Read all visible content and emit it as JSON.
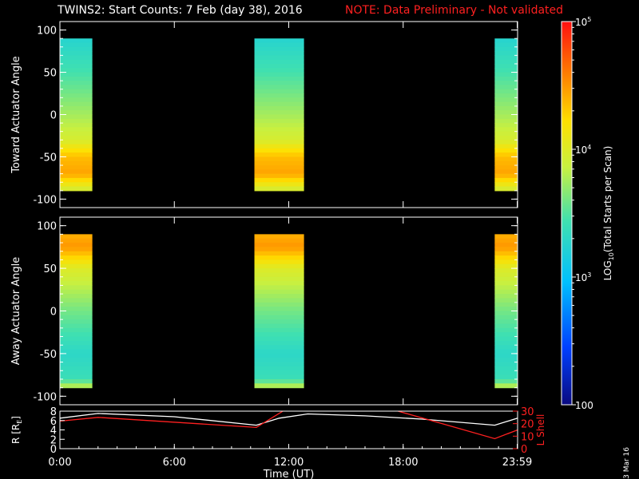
{
  "title": "TWINS2: Start Counts:  7 Feb (day  38), 2016",
  "note": "NOTE: Data Preliminary - Not validated",
  "date_stamp": "3 Mar 16",
  "colors": {
    "background": "#000000",
    "axes": "#ffffff",
    "note": "#ff2020",
    "r_line": "#ffffff",
    "lshell_line": "#ff2020"
  },
  "chart_data": [
    {
      "type": "heatmap",
      "ylabel": "Toward Actuator Angle",
      "ylim": [
        -110,
        110
      ],
      "yticks": [
        "100",
        "50",
        "0",
        "-50",
        "-100"
      ],
      "ytick_values": [
        100,
        50,
        0,
        -50,
        -100
      ],
      "data_ylim": [
        -90,
        90
      ],
      "xlim": [
        0,
        24
      ],
      "data_intervals_hours": [
        [
          0.0,
          1.7
        ],
        [
          10.2,
          12.8
        ],
        [
          22.8,
          24.0
        ]
      ],
      "log10_counts_profile": [
        {
          "angle": 90,
          "log10_counts": 3.25
        },
        {
          "angle": 50,
          "log10_counts": 3.45
        },
        {
          "angle": 0,
          "log10_counts": 3.75
        },
        {
          "angle": -30,
          "log10_counts": 3.95
        },
        {
          "angle": -50,
          "log10_counts": 4.35
        },
        {
          "angle": -70,
          "log10_counts": 4.45
        },
        {
          "angle": -90,
          "log10_counts": 3.9
        }
      ]
    },
    {
      "type": "heatmap",
      "ylabel": "Away Actuator Angle",
      "ylim": [
        -110,
        110
      ],
      "yticks": [
        "100",
        "50",
        "0",
        "-50",
        "-100"
      ],
      "ytick_values": [
        100,
        50,
        0,
        -50,
        -100
      ],
      "data_ylim": [
        -90,
        90
      ],
      "xlim": [
        0,
        24
      ],
      "data_intervals_hours": [
        [
          0.0,
          1.7
        ],
        [
          10.2,
          12.8
        ],
        [
          22.8,
          24.0
        ]
      ],
      "log10_counts_profile": [
        {
          "angle": 90,
          "log10_counts": 4.4
        },
        {
          "angle": 75,
          "log10_counts": 4.5
        },
        {
          "angle": 50,
          "log10_counts": 4.0
        },
        {
          "angle": 0,
          "log10_counts": 3.6
        },
        {
          "angle": -50,
          "log10_counts": 3.3
        },
        {
          "angle": -80,
          "log10_counts": 3.4
        },
        {
          "angle": -90,
          "log10_counts": 3.9
        }
      ]
    },
    {
      "type": "line",
      "ylabel": "R [R",
      "ylabel_sub": "E",
      "ylabel_end": "]",
      "ylim": [
        0,
        8
      ],
      "yticks": [
        "8",
        "6",
        "4",
        "2",
        "0"
      ],
      "ytick_values": [
        8,
        6,
        4,
        2,
        0
      ],
      "y2label": "L Shell",
      "y2lim": [
        0,
        30
      ],
      "y2ticks": [
        "30",
        "20",
        "10",
        "0"
      ],
      "y2tick_values": [
        30,
        20,
        10,
        0
      ],
      "xlabel": "Time (UT)",
      "xlim": [
        0,
        24
      ],
      "xticks": [
        "0:00",
        "6:00",
        "12:00",
        "18:00",
        "23:59"
      ],
      "xtick_values": [
        0,
        6,
        12,
        18,
        23.98
      ],
      "series": [
        {
          "name": "R",
          "axis": "left",
          "x": [
            0.0,
            2.0,
            6.0,
            10.3,
            11.5,
            13.0,
            16.0,
            19.0,
            22.8,
            24.0
          ],
          "y": [
            6.5,
            7.5,
            6.8,
            5.0,
            6.5,
            7.4,
            7.0,
            6.3,
            5.0,
            6.5
          ]
        },
        {
          "name": "L Shell",
          "axis": "right",
          "segments": [
            {
              "x": [
                0.0,
                2.0,
                10.3,
                11.8
              ],
              "y": [
                22,
                25,
                17,
                31
              ]
            },
            {
              "x": [
                17.5,
                22.8,
                24.0
              ],
              "y": [
                31,
                8,
                15
              ]
            }
          ]
        }
      ]
    }
  ],
  "colorbar": {
    "label": "LOG",
    "label_sub": "10",
    "label_end": "(Total Starts per Scan)",
    "range": [
      2,
      5
    ],
    "ticks": [
      {
        "value": 5,
        "base": "10",
        "exp": "5"
      },
      {
        "value": 4,
        "base": "10",
        "exp": "4"
      },
      {
        "value": 3,
        "base": "10",
        "exp": "3"
      },
      {
        "value": 2,
        "base": "100",
        "exp": ""
      }
    ]
  }
}
